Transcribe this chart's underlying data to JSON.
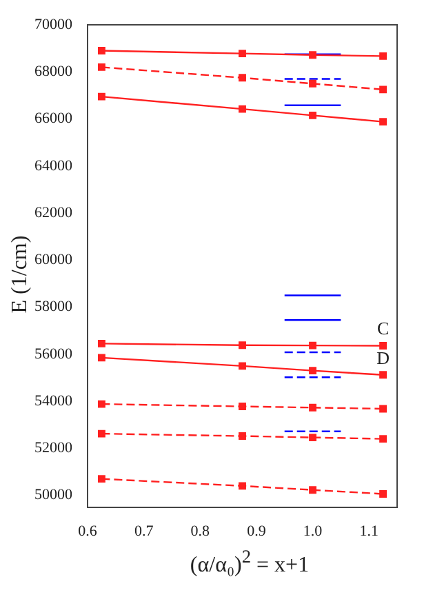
{
  "chart_data": {
    "type": "line",
    "xlabel": "(α/α₀)$^{2}$ = x+1",
    "ylabel": "E (1/cm)",
    "xlim": [
      0.6,
      1.15
    ],
    "xticks": [
      {
        "value": 0.6,
        "label": "0.6"
      },
      {
        "value": 0.7,
        "label": "0.7"
      },
      {
        "value": 0.8,
        "label": "0.8"
      },
      {
        "value": 0.9,
        "label": "0.9"
      },
      {
        "value": 1.0,
        "label": "1.0"
      },
      {
        "value": 1.1,
        "label": "1.1"
      }
    ],
    "ylim": [
      49500,
      70000
    ],
    "yticks": [
      50000,
      52000,
      54000,
      56000,
      58000,
      60000,
      62000,
      64000,
      66000,
      68000,
      70000
    ],
    "grid": false,
    "legend": false,
    "series": [
      {
        "x": [
          0.625,
          0.875,
          1.0,
          1.125
        ],
        "values": [
          68900,
          68780,
          68720,
          68670
        ],
        "color": "#ff2020",
        "line_style": "solid",
        "marker": "square"
      },
      {
        "x": [
          0.625,
          0.875,
          1.0,
          1.125
        ],
        "values": [
          68200,
          67750,
          67500,
          67250
        ],
        "color": "#ff2020",
        "line_style": "dashed",
        "marker": "square"
      },
      {
        "x": [
          0.625,
          0.875,
          1.0,
          1.125
        ],
        "values": [
          66950,
          66420,
          66150,
          65880
        ],
        "color": "#ff2020",
        "line_style": "solid",
        "marker": "square"
      },
      {
        "x": [
          0.625,
          0.875,
          1.0,
          1.125
        ],
        "values": [
          56450,
          56380,
          56370,
          56360
        ],
        "color": "#ff2020",
        "line_style": "solid",
        "marker": "square"
      },
      {
        "x": [
          0.625,
          0.875,
          1.0,
          1.125
        ],
        "values": [
          55850,
          55500,
          55300,
          55120
        ],
        "color": "#ff2020",
        "line_style": "solid",
        "marker": "square"
      },
      {
        "x": [
          0.625,
          0.875,
          1.0,
          1.125
        ],
        "values": [
          53880,
          53780,
          53730,
          53680
        ],
        "color": "#ff2020",
        "line_style": "dashed",
        "marker": "square"
      },
      {
        "x": [
          0.625,
          0.875,
          1.0,
          1.125
        ],
        "values": [
          52620,
          52520,
          52460,
          52400
        ],
        "color": "#ff2020",
        "line_style": "dashed",
        "marker": "square"
      },
      {
        "x": [
          0.625,
          0.875,
          1.0,
          1.125
        ],
        "values": [
          50700,
          50400,
          50230,
          50060
        ],
        "color": "#ff2020",
        "line_style": "dashed",
        "marker": "square"
      },
      {
        "x": [
          0.95,
          1.05
        ],
        "values": [
          68750,
          68750
        ],
        "color": "#0000ff",
        "line_style": "solid",
        "marker": "none"
      },
      {
        "x": [
          0.95,
          1.05
        ],
        "values": [
          67700,
          67700
        ],
        "color": "#0000ff",
        "line_style": "dashed",
        "marker": "none"
      },
      {
        "x": [
          0.95,
          1.05
        ],
        "values": [
          66580,
          66580
        ],
        "color": "#0000ff",
        "line_style": "solid",
        "marker": "none"
      },
      {
        "x": [
          0.95,
          1.05
        ],
        "values": [
          58500,
          58500
        ],
        "color": "#0000ff",
        "line_style": "solid",
        "marker": "none"
      },
      {
        "x": [
          0.95,
          1.05
        ],
        "values": [
          57450,
          57450
        ],
        "color": "#0000ff",
        "line_style": "solid",
        "marker": "none"
      },
      {
        "x": [
          0.95,
          1.05
        ],
        "values": [
          56080,
          56080
        ],
        "color": "#0000ff",
        "line_style": "dashed",
        "marker": "none"
      },
      {
        "x": [
          0.95,
          1.05
        ],
        "values": [
          55020,
          55020
        ],
        "color": "#0000ff",
        "line_style": "dashed",
        "marker": "none"
      },
      {
        "x": [
          0.95,
          1.05
        ],
        "values": [
          52720,
          52720
        ],
        "color": "#0000ff",
        "line_style": "dashed",
        "marker": "none"
      }
    ],
    "annotations": [
      {
        "text": "C",
        "x": 1.125,
        "y": 56360
      },
      {
        "text": "D",
        "x": 1.125,
        "y": 55120
      }
    ]
  }
}
